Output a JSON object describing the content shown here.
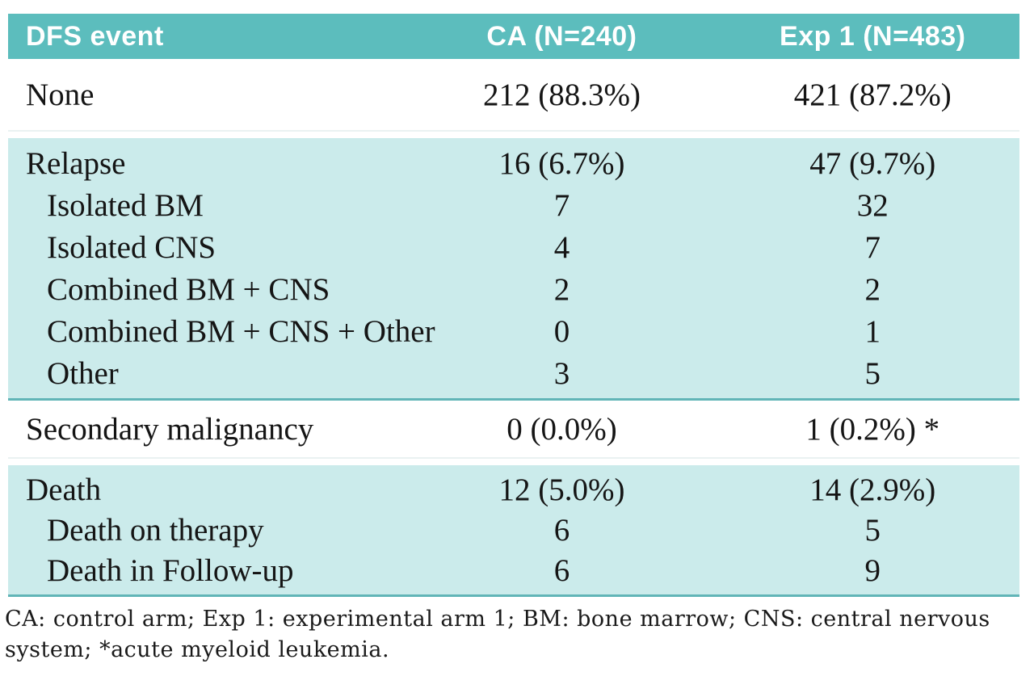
{
  "table": {
    "header": {
      "event": "DFS event",
      "ca": "CA (N=240)",
      "exp": "Exp 1 (N=483)"
    },
    "sections": [
      {
        "shade": "white",
        "rows": [
          {
            "label": "None",
            "ca": "212 (88.3%)",
            "exp": "421 (87.2%)",
            "indent": false
          }
        ]
      },
      {
        "shade": "teal",
        "rows": [
          {
            "label": "Relapse",
            "ca": "16 (6.7%)",
            "exp": "47 (9.7%)",
            "indent": false
          },
          {
            "label": "Isolated BM",
            "ca": "7",
            "exp": "32",
            "indent": true
          },
          {
            "label": "Isolated CNS",
            "ca": "4",
            "exp": "7",
            "indent": true
          },
          {
            "label": "Combined BM + CNS",
            "ca": "2",
            "exp": "2",
            "indent": true
          },
          {
            "label": "Combined BM + CNS + Other",
            "ca": "0",
            "exp": "1",
            "indent": true
          },
          {
            "label": "Other",
            "ca": "3",
            "exp": "5",
            "indent": true
          }
        ]
      },
      {
        "shade": "white",
        "rows": [
          {
            "label": "Secondary malignancy",
            "ca": "0 (0.0%)",
            "exp": "1 (0.2%) *",
            "indent": false
          }
        ]
      },
      {
        "shade": "teal",
        "rows": [
          {
            "label": "Death",
            "ca": "12 (5.0%)",
            "exp": "14 (2.9%)",
            "indent": false
          },
          {
            "label": "Death on therapy",
            "ca": "6",
            "exp": "5",
            "indent": true
          },
          {
            "label": "Death in Follow-up",
            "ca": "6",
            "exp": "9",
            "indent": true
          }
        ]
      }
    ]
  },
  "footnote": {
    "lines": [
      "CA: control arm; Exp 1: experimental arm 1; BM: bone marrow; CNS: central nervous",
      "system; *acute myeloid leukemia."
    ]
  },
  "colors": {
    "header_bg": "#5cbdbd",
    "band_bg": "#cbebeb",
    "rule": "#61b5b7",
    "header_text": "#ffffff",
    "body_text": "#151515"
  }
}
